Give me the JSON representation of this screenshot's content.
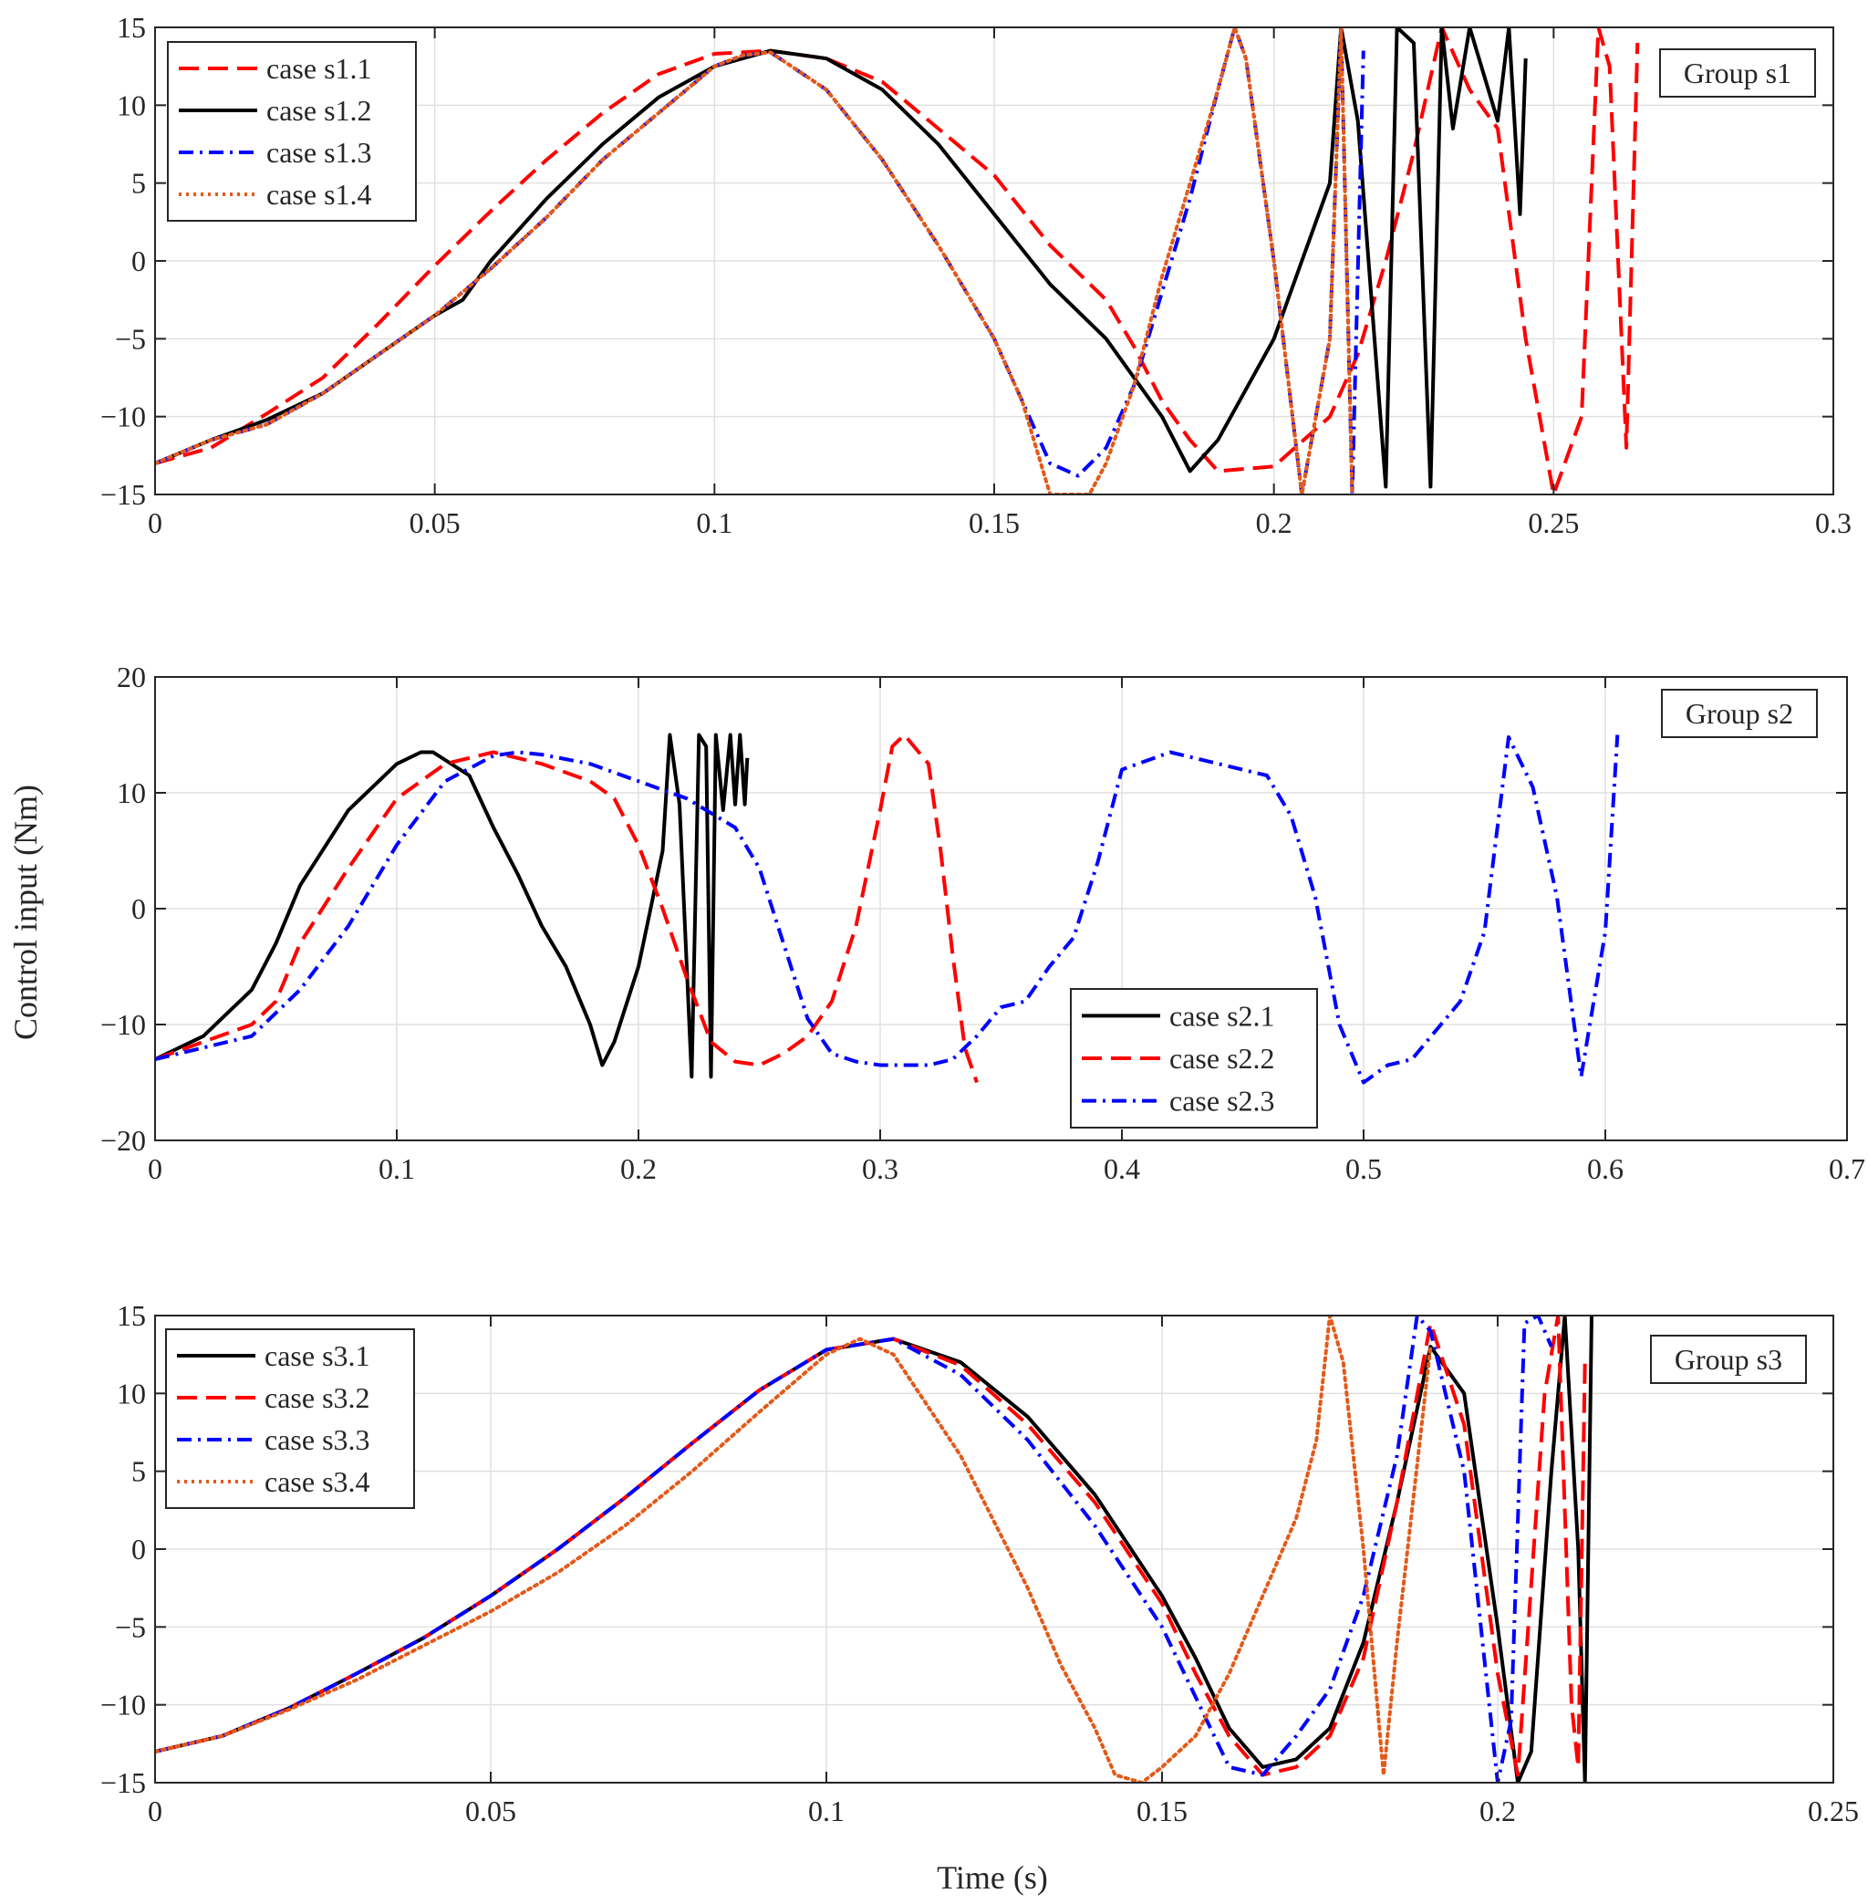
{
  "figure": {
    "ylabel": "Control input  (Nm)",
    "xlabel": "Time (s)"
  },
  "chart_data": [
    {
      "type": "line",
      "title": "",
      "annotation": "Group s1",
      "legend_position": "top-left",
      "xlim": [
        0,
        0.3
      ],
      "ylim": [
        -15,
        15
      ],
      "xticks": [
        0,
        0.05,
        0.1,
        0.15,
        0.2,
        0.25,
        0.3
      ],
      "xtick_labels": [
        "0",
        "0.05",
        "0.1",
        "0.15",
        "0.2",
        "0.25",
        "0.3"
      ],
      "yticks": [
        -15,
        -10,
        -5,
        0,
        5,
        10,
        15
      ],
      "ytick_labels": [
        "-15",
        "-10",
        "-5",
        "0",
        "5",
        "10",
        "15"
      ],
      "grid": true,
      "series": [
        {
          "name": "case s1.1",
          "color": "#ff0000",
          "style": "dashed",
          "x": [
            0,
            0.01,
            0.02,
            0.03,
            0.04,
            0.05,
            0.06,
            0.07,
            0.08,
            0.09,
            0.1,
            0.11,
            0.12,
            0.13,
            0.14,
            0.15,
            0.16,
            0.17,
            0.175,
            0.18,
            0.185,
            0.19,
            0.2,
            0.21,
            0.215,
            0.22,
            0.225,
            0.23,
            0.235,
            0.24,
            0.245,
            0.25,
            0.255,
            0.258,
            0.26,
            0.263,
            0.265
          ],
          "y": [
            -13,
            -12,
            -9.8,
            -7.5,
            -4,
            -0.3,
            3.2,
            6.5,
            9.5,
            12,
            13.3,
            13.5,
            13,
            11.5,
            8.5,
            5.5,
            1,
            -2.5,
            -5.5,
            -9,
            -11.5,
            -13.5,
            -13.2,
            -10,
            -6,
            0,
            7,
            15,
            11,
            8.5,
            -5,
            -15,
            -10,
            15,
            12.5,
            -12,
            14
          ]
        },
        {
          "name": "case s1.2",
          "color": "#000000",
          "style": "solid",
          "x": [
            0,
            0.01,
            0.02,
            0.03,
            0.04,
            0.05,
            0.055,
            0.06,
            0.07,
            0.08,
            0.09,
            0.1,
            0.11,
            0.12,
            0.13,
            0.14,
            0.15,
            0.16,
            0.17,
            0.18,
            0.185,
            0.19,
            0.2,
            0.205,
            0.21,
            0.212,
            0.215,
            0.22,
            0.222,
            0.225,
            0.228,
            0.23,
            0.232,
            0.235,
            0.24,
            0.242,
            0.244,
            0.245
          ],
          "y": [
            -13,
            -11.5,
            -10.2,
            -8.5,
            -6,
            -3.5,
            -2.5,
            0,
            4,
            7.5,
            10.5,
            12.5,
            13.5,
            13,
            11,
            7.5,
            3,
            -1.5,
            -5,
            -10,
            -13.5,
            -11.5,
            -5,
            0,
            5,
            15,
            9,
            -14.5,
            15,
            14,
            -14.5,
            15,
            8.5,
            15,
            9,
            15,
            3,
            13
          ]
        },
        {
          "name": "case s1.3",
          "color": "#0000ff",
          "style": "dashdot",
          "x": [
            0,
            0.01,
            0.02,
            0.03,
            0.04,
            0.05,
            0.06,
            0.07,
            0.08,
            0.09,
            0.1,
            0.105,
            0.11,
            0.12,
            0.13,
            0.14,
            0.15,
            0.155,
            0.16,
            0.165,
            0.17,
            0.175,
            0.18,
            0.185,
            0.19,
            0.193,
            0.195,
            0.2,
            0.205,
            0.21,
            0.212,
            0.214,
            0.216
          ],
          "y": [
            -13,
            -11.5,
            -10.5,
            -8.5,
            -6,
            -3.5,
            -0.5,
            2.8,
            6.5,
            9.5,
            12.5,
            13.2,
            13.4,
            11,
            6.5,
            1,
            -5,
            -9,
            -13,
            -13.8,
            -12,
            -8,
            -2,
            4,
            11,
            15,
            13,
            0,
            -15,
            -5,
            15,
            -15,
            13.5
          ]
        },
        {
          "name": "case s1.4",
          "color": "#e35a1a",
          "style": "dotted",
          "x": [
            0,
            0.01,
            0.02,
            0.03,
            0.04,
            0.05,
            0.06,
            0.07,
            0.08,
            0.09,
            0.1,
            0.105,
            0.11,
            0.12,
            0.13,
            0.14,
            0.15,
            0.155,
            0.16,
            0.163,
            0.167,
            0.17,
            0.175,
            0.18,
            0.185,
            0.19,
            0.193,
            0.195,
            0.2,
            0.205,
            0.21,
            0.212,
            0.214
          ],
          "y": [
            -13,
            -11.5,
            -10.5,
            -8.5,
            -6,
            -3.5,
            -0.5,
            2.8,
            6.5,
            9.5,
            12.5,
            13.2,
            13.4,
            11,
            6.5,
            1,
            -5,
            -9,
            -15,
            -15,
            -15,
            -13,
            -8,
            -1,
            5,
            11,
            15,
            13,
            0,
            -15,
            -5,
            15,
            -15
          ]
        }
      ]
    },
    {
      "type": "line",
      "title": "",
      "annotation": "Group s2",
      "legend_position": "bottom-right",
      "xlim": [
        0,
        0.7
      ],
      "ylim": [
        -20,
        20
      ],
      "xticks": [
        0,
        0.1,
        0.2,
        0.3,
        0.4,
        0.5,
        0.6,
        0.7
      ],
      "xtick_labels": [
        "0",
        "0.1",
        "0.2",
        "0.3",
        "0.4",
        "0.5",
        "0.6",
        "0.7"
      ],
      "yticks": [
        -20,
        -10,
        0,
        10,
        20
      ],
      "ytick_labels": [
        "-20",
        "-10",
        "0",
        "10",
        "20"
      ],
      "grid": true,
      "series": [
        {
          "name": "case s2.1",
          "color": "#000000",
          "style": "solid",
          "x": [
            0,
            0.02,
            0.04,
            0.05,
            0.06,
            0.08,
            0.1,
            0.11,
            0.115,
            0.13,
            0.14,
            0.15,
            0.16,
            0.17,
            0.18,
            0.185,
            0.19,
            0.2,
            0.205,
            0.21,
            0.213,
            0.217,
            0.222,
            0.225,
            0.228,
            0.23,
            0.232,
            0.235,
            0.238,
            0.24,
            0.242,
            0.244,
            0.245
          ],
          "y": [
            -13,
            -11,
            -7,
            -3,
            2,
            8.5,
            12.5,
            13.5,
            13.5,
            11.5,
            7,
            3,
            -1.5,
            -5,
            -10,
            -13.5,
            -11.5,
            -5,
            0,
            5,
            15,
            9,
            -14.5,
            15,
            14,
            -14.5,
            15,
            8.5,
            15,
            9,
            15,
            9,
            13
          ]
        },
        {
          "name": "case s2.2",
          "color": "#ff0000",
          "style": "dashed",
          "x": [
            0,
            0.02,
            0.04,
            0.05,
            0.06,
            0.08,
            0.1,
            0.12,
            0.14,
            0.16,
            0.18,
            0.19,
            0.2,
            0.21,
            0.22,
            0.23,
            0.24,
            0.25,
            0.26,
            0.27,
            0.28,
            0.29,
            0.3,
            0.305,
            0.31,
            0.32,
            0.325,
            0.33,
            0.335,
            0.34
          ],
          "y": [
            -13,
            -11.5,
            -10,
            -8,
            -3,
            3.5,
            9.5,
            12.5,
            13.5,
            12.5,
            11,
            9.5,
            5.5,
            0,
            -6,
            -11.5,
            -13.2,
            -13.5,
            -12.5,
            -11,
            -8,
            -1.5,
            8.5,
            14,
            15,
            12.5,
            5,
            -4,
            -12,
            -15
          ]
        },
        {
          "name": "case s2.3",
          "color": "#0000ff",
          "style": "dashdot",
          "x": [
            0,
            0.02,
            0.04,
            0.06,
            0.08,
            0.1,
            0.12,
            0.14,
            0.15,
            0.16,
            0.18,
            0.2,
            0.22,
            0.24,
            0.25,
            0.26,
            0.27,
            0.28,
            0.29,
            0.3,
            0.32,
            0.33,
            0.34,
            0.35,
            0.36,
            0.37,
            0.38,
            0.39,
            0.4,
            0.42,
            0.44,
            0.46,
            0.47,
            0.48,
            0.49,
            0.5,
            0.51,
            0.52,
            0.54,
            0.55,
            0.56,
            0.57,
            0.58,
            0.59,
            0.6,
            0.605
          ],
          "y": [
            -13,
            -12,
            -11,
            -7,
            -1.5,
            5.5,
            11,
            13.2,
            13.5,
            13.3,
            12.5,
            11,
            9.5,
            7,
            3.5,
            -3,
            -9.5,
            -12.5,
            -13.2,
            -13.5,
            -13.5,
            -13,
            -11,
            -8.5,
            -8,
            -5,
            -2.5,
            4,
            12,
            13.5,
            12.5,
            11.5,
            8,
            1,
            -10,
            -15,
            -13.5,
            -13,
            -8,
            -2,
            14.8,
            10.5,
            1,
            -14.5,
            -2,
            15
          ]
        }
      ]
    },
    {
      "type": "line",
      "title": "",
      "annotation": "Group s3",
      "legend_position": "top-left",
      "xlim": [
        0,
        0.25
      ],
      "ylim": [
        -15,
        15
      ],
      "xticks": [
        0,
        0.05,
        0.1,
        0.15,
        0.2,
        0.25
      ],
      "xtick_labels": [
        "0",
        "0.05",
        "0.1",
        "0.15",
        "0.2",
        "0.25"
      ],
      "yticks": [
        -15,
        -10,
        -5,
        0,
        5,
        10,
        15
      ],
      "ytick_labels": [
        "-15",
        "-10",
        "-5",
        "0",
        "5",
        "10",
        "15"
      ],
      "grid": true,
      "series": [
        {
          "name": "case s3.1",
          "color": "#000000",
          "style": "solid",
          "x": [
            0,
            0.01,
            0.02,
            0.03,
            0.04,
            0.05,
            0.06,
            0.07,
            0.08,
            0.09,
            0.1,
            0.11,
            0.12,
            0.13,
            0.14,
            0.15,
            0.155,
            0.16,
            0.165,
            0.17,
            0.175,
            0.18,
            0.185,
            0.19,
            0.195,
            0.2,
            0.203,
            0.205,
            0.208,
            0.21,
            0.212,
            0.213,
            0.214
          ],
          "y": [
            -13,
            -12,
            -10.2,
            -8,
            -5.7,
            -3,
            0,
            3.3,
            6.8,
            10.2,
            12.8,
            13.5,
            12,
            8.5,
            3.5,
            -3,
            -7,
            -11.5,
            -14,
            -13.5,
            -11.5,
            -6,
            3,
            13,
            10,
            -5,
            -15,
            -13,
            5,
            15,
            0,
            -15,
            15
          ]
        },
        {
          "name": "case s3.2",
          "color": "#ff0000",
          "style": "dashed",
          "x": [
            0,
            0.01,
            0.02,
            0.03,
            0.04,
            0.05,
            0.06,
            0.07,
            0.08,
            0.09,
            0.1,
            0.11,
            0.12,
            0.13,
            0.14,
            0.15,
            0.155,
            0.16,
            0.165,
            0.17,
            0.175,
            0.18,
            0.185,
            0.19,
            0.195,
            0.2,
            0.203,
            0.207,
            0.209,
            0.211,
            0.212,
            0.213
          ],
          "y": [
            -13,
            -12,
            -10.2,
            -8,
            -5.7,
            -3,
            0,
            3.3,
            6.8,
            10.2,
            12.8,
            13.5,
            11.8,
            8,
            3,
            -3.5,
            -8,
            -12,
            -14.5,
            -14,
            -12,
            -7,
            3,
            14.5,
            8,
            -8,
            -14.5,
            10,
            15,
            -10,
            -14,
            12
          ]
        },
        {
          "name": "case s3.3",
          "color": "#0000ff",
          "style": "dashdot",
          "x": [
            0,
            0.01,
            0.02,
            0.03,
            0.04,
            0.05,
            0.06,
            0.07,
            0.08,
            0.09,
            0.1,
            0.11,
            0.12,
            0.13,
            0.14,
            0.15,
            0.155,
            0.16,
            0.165,
            0.17,
            0.175,
            0.18,
            0.185,
            0.188,
            0.19,
            0.195,
            0.2,
            0.202,
            0.204,
            0.206,
            0.208
          ],
          "y": [
            -13,
            -12,
            -10.2,
            -8,
            -5.7,
            -3,
            0,
            3.3,
            6.8,
            10.2,
            12.8,
            13.5,
            11.2,
            7,
            1.5,
            -5,
            -9.5,
            -14,
            -14.5,
            -12,
            -9,
            -3,
            6,
            15,
            14,
            5,
            -15,
            -11,
            14.5,
            15,
            13
          ]
        },
        {
          "name": "case s3.4",
          "color": "#e35a1a",
          "style": "dotted",
          "x": [
            0,
            0.01,
            0.02,
            0.03,
            0.04,
            0.05,
            0.06,
            0.07,
            0.08,
            0.09,
            0.1,
            0.105,
            0.11,
            0.12,
            0.13,
            0.135,
            0.14,
            0.143,
            0.147,
            0.15,
            0.155,
            0.16,
            0.165,
            0.17,
            0.173,
            0.175,
            0.177,
            0.18,
            0.183,
            0.185,
            0.19
          ],
          "y": [
            -13,
            -12,
            -10.3,
            -8.4,
            -6.2,
            -4,
            -1.5,
            1.5,
            5,
            8.8,
            12.5,
            13.5,
            12.5,
            6,
            -2.5,
            -7.5,
            -11.5,
            -14.5,
            -15,
            -14,
            -12,
            -8,
            -3,
            2,
            7,
            15,
            12,
            0,
            -14.5,
            -6,
            13
          ]
        }
      ]
    }
  ]
}
